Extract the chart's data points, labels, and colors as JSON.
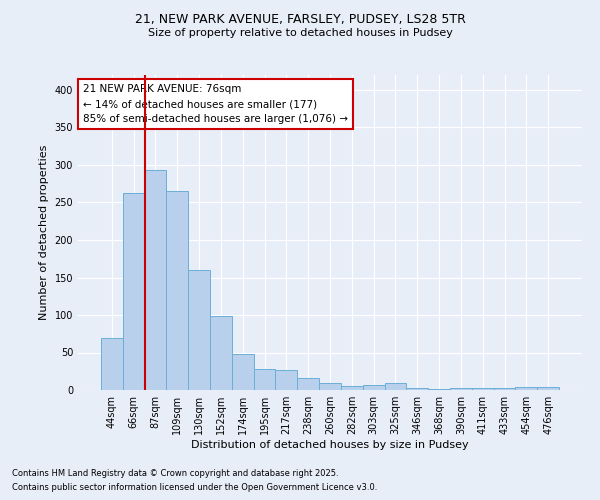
{
  "title_line1": "21, NEW PARK AVENUE, FARSLEY, PUDSEY, LS28 5TR",
  "title_line2": "Size of property relative to detached houses in Pudsey",
  "xlabel": "Distribution of detached houses by size in Pudsey",
  "ylabel": "Number of detached properties",
  "categories": [
    "44sqm",
    "66sqm",
    "87sqm",
    "109sqm",
    "130sqm",
    "152sqm",
    "174sqm",
    "195sqm",
    "217sqm",
    "238sqm",
    "260sqm",
    "282sqm",
    "303sqm",
    "325sqm",
    "346sqm",
    "368sqm",
    "390sqm",
    "411sqm",
    "433sqm",
    "454sqm",
    "476sqm"
  ],
  "values": [
    70,
    263,
    293,
    265,
    160,
    99,
    48,
    28,
    27,
    16,
    9,
    6,
    7,
    9,
    3,
    2,
    3,
    3,
    3,
    4,
    4
  ],
  "bar_color": "#b8d0eb",
  "bar_edge_color": "#6aaed6",
  "background_color": "#e8eef8",
  "grid_color": "#ffffff",
  "vline_color": "#cc0000",
  "annotation_text": "21 NEW PARK AVENUE: 76sqm\n← 14% of detached houses are smaller (177)\n85% of semi-detached houses are larger (1,076) →",
  "annotation_box_color": "#cc0000",
  "ylim": [
    0,
    420
  ],
  "yticks": [
    0,
    50,
    100,
    150,
    200,
    250,
    300,
    350,
    400
  ],
  "footnote1": "Contains HM Land Registry data © Crown copyright and database right 2025.",
  "footnote2": "Contains public sector information licensed under the Open Government Licence v3.0."
}
